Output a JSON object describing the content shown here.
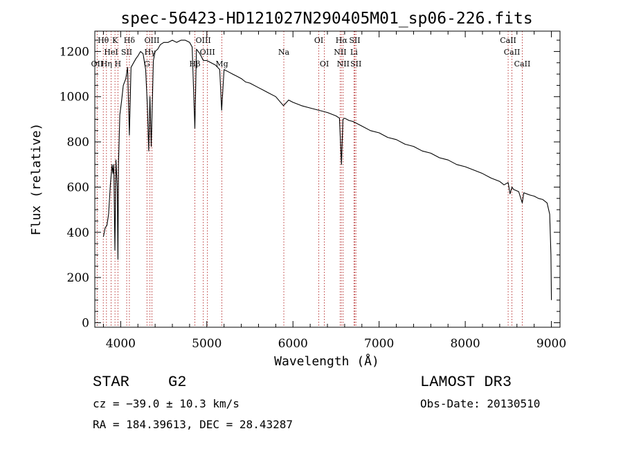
{
  "chart_data": {
    "type": "line",
    "title": "spec-56423-HD121027N290405M01_sp06-226.fits",
    "xlabel": "Wavelength (Å)",
    "ylabel": "Flux (relative)",
    "xlim": [
      3700,
      9100
    ],
    "ylim": [
      -20,
      1290
    ],
    "xticks": [
      4000,
      5000,
      6000,
      7000,
      8000,
      9000
    ],
    "yticks": [
      0,
      200,
      400,
      600,
      800,
      1000,
      1200
    ],
    "spectrum": {
      "x": [
        3800,
        3820,
        3840,
        3860,
        3880,
        3900,
        3910,
        3920,
        3933,
        3945,
        3960,
        3968,
        3975,
        3990,
        4010,
        4030,
        4060,
        4080,
        4101,
        4120,
        4150,
        4180,
        4200,
        4230,
        4260,
        4290,
        4310,
        4325,
        4340,
        4355,
        4380,
        4400,
        4430,
        4460,
        4500,
        4550,
        4600,
        4650,
        4700,
        4750,
        4800,
        4830,
        4861,
        4880,
        4920,
        4960,
        5000,
        5050,
        5100,
        5150,
        5172,
        5200,
        5250,
        5300,
        5350,
        5400,
        5450,
        5500,
        5600,
        5700,
        5800,
        5890,
        5950,
        6000,
        6100,
        6200,
        6300,
        6400,
        6500,
        6540,
        6563,
        6580,
        6600,
        6650,
        6700,
        6800,
        6900,
        7000,
        7100,
        7200,
        7300,
        7400,
        7500,
        7600,
        7700,
        7800,
        7900,
        8000,
        8100,
        8200,
        8300,
        8400,
        8450,
        8498,
        8520,
        8542,
        8560,
        8620,
        8662,
        8680,
        8750,
        8800,
        8850,
        8900,
        8950,
        8980,
        8995,
        9000
      ],
      "y": [
        380,
        420,
        430,
        480,
        610,
        700,
        660,
        700,
        320,
        720,
        600,
        280,
        700,
        920,
        980,
        1050,
        1080,
        1130,
        830,
        1130,
        1150,
        1170,
        1180,
        1200,
        1190,
        1120,
        960,
        760,
        1000,
        780,
        1160,
        1200,
        1210,
        1230,
        1240,
        1240,
        1250,
        1240,
        1250,
        1250,
        1240,
        1220,
        860,
        1210,
        1190,
        1160,
        1160,
        1150,
        1140,
        1120,
        940,
        1120,
        1110,
        1100,
        1090,
        1080,
        1065,
        1060,
        1040,
        1020,
        1000,
        960,
        985,
        975,
        960,
        950,
        940,
        930,
        915,
        905,
        700,
        900,
        905,
        895,
        890,
        870,
        850,
        840,
        820,
        810,
        790,
        780,
        760,
        750,
        730,
        720,
        700,
        690,
        675,
        660,
        640,
        625,
        610,
        620,
        570,
        600,
        590,
        580,
        530,
        575,
        565,
        560,
        550,
        545,
        530,
        480,
        300,
        100
      ]
    },
    "lines": [
      {
        "label": "Hθ",
        "wavelength": 3798,
        "row": 1
      },
      {
        "label": "OII",
        "wavelength": 3727,
        "row": 3
      },
      {
        "label": "Hη",
        "wavelength": 3835,
        "row": 3
      },
      {
        "label": "HeI",
        "wavelength": 3889,
        "row": 2
      },
      {
        "label": "K",
        "wavelength": 3934,
        "row": 1
      },
      {
        "label": "SII",
        "wavelength": 4070,
        "row": 2
      },
      {
        "label": "H",
        "wavelength": 3968,
        "row": 3
      },
      {
        "label": "Hδ",
        "wavelength": 4101,
        "row": 1
      },
      {
        "label": "G",
        "wavelength": 4305,
        "row": 3
      },
      {
        "label": "OIII",
        "wavelength": 4363,
        "row": 1
      },
      {
        "label": "Hγ",
        "wavelength": 4340,
        "row": 2
      },
      {
        "label": "Hβ",
        "wavelength": 4861,
        "row": 3
      },
      {
        "label": "OIII",
        "wavelength": 4959,
        "row": 1
      },
      {
        "label": "OIII",
        "wavelength": 5007,
        "row": 2
      },
      {
        "label": "Mg",
        "wavelength": 5175,
        "row": 3
      },
      {
        "label": "Na",
        "wavelength": 5894,
        "row": 2
      },
      {
        "label": "OI",
        "wavelength": 6300,
        "row": 1
      },
      {
        "label": "OI",
        "wavelength": 6364,
        "row": 3
      },
      {
        "label": "Hα",
        "wavelength": 6563,
        "row": 1
      },
      {
        "label": "NII",
        "wavelength": 6548,
        "row": 2
      },
      {
        "label": "NII",
        "wavelength": 6583,
        "row": 3
      },
      {
        "label": "SII",
        "wavelength": 6717,
        "row": 1
      },
      {
        "label": "Li",
        "wavelength": 6708,
        "row": 2
      },
      {
        "label": "SII",
        "wavelength": 6731,
        "row": 3
      },
      {
        "label": "CaII",
        "wavelength": 8498,
        "row": 1
      },
      {
        "label": "CaII",
        "wavelength": 8542,
        "row": 2
      },
      {
        "label": "CaII",
        "wavelength": 8662,
        "row": 3
      }
    ]
  },
  "info": {
    "object_class": "STAR",
    "subclass": "G2",
    "survey": "LAMOST DR3",
    "redshift": "cz = −39.0 ± 10.3 km/s",
    "obs_date": "Obs-Date: 20130510",
    "coords": "RA = 184.39613, DEC =  28.43287"
  },
  "colors": {
    "spectrum": "#000000",
    "line_markers": "#b22222",
    "background": "#ffffff"
  }
}
